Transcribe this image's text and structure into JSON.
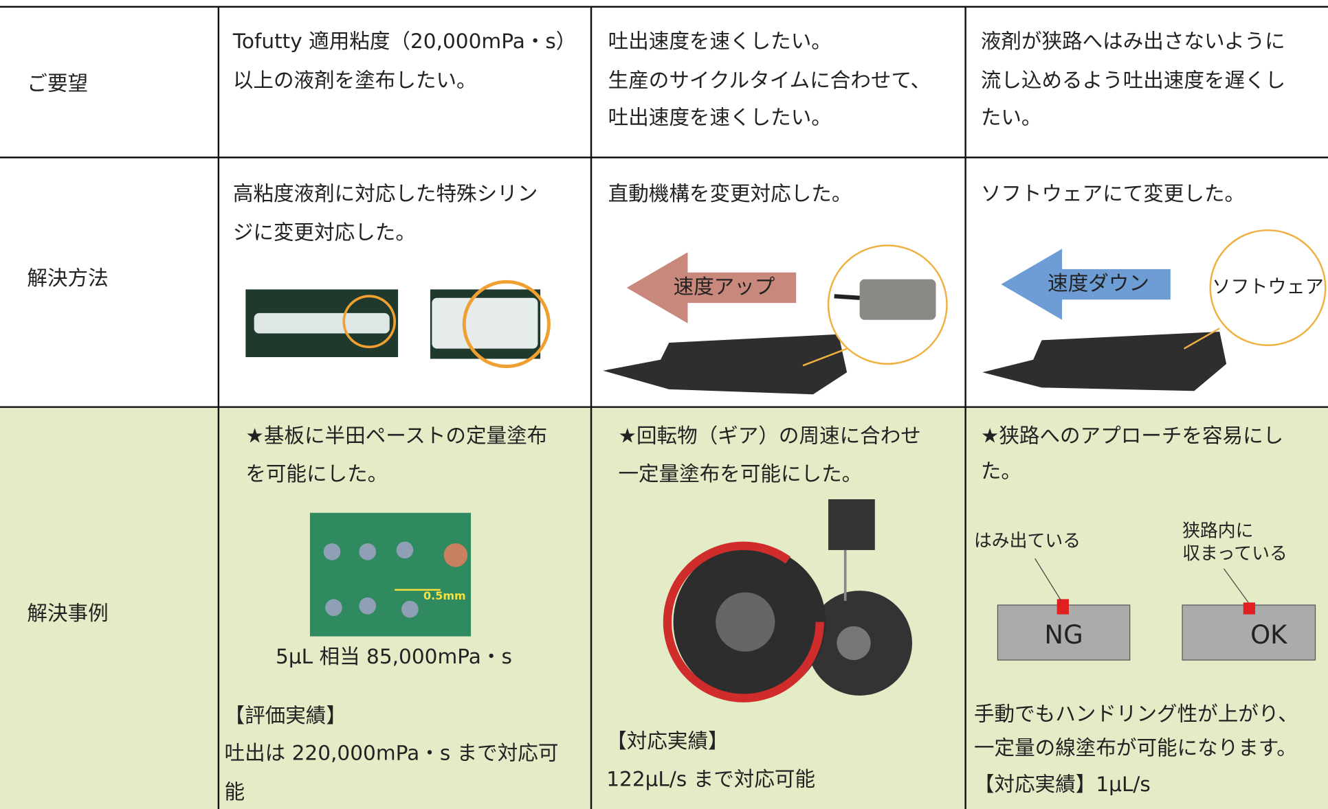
{
  "table": {
    "rows": [
      {
        "header": "ご要望",
        "cells": [
          {
            "lines": [
              "Tofutty 適用粘度（20,000mPa・s）",
              "以上の液剤を塗布したい。"
            ]
          },
          {
            "lines": [
              "吐出速度を速くしたい。",
              "生産のサイクルタイムに合わせて、",
              "吐出速度を速くしたい。"
            ]
          },
          {
            "lines": [
              "液剤が狭路へはみ出さないように",
              "流し込めるよう吐出速度を遅くし",
              "たい。"
            ]
          }
        ]
      },
      {
        "header": "解決方法",
        "cells": [
          {
            "lines": [
              "高粘度液剤に対応した特殊シリン",
              "ジに変更対応した。"
            ]
          },
          {
            "lines": [
              "直動機構を変更対応した。"
            ],
            "figure_labels": [
              "速度アップ"
            ]
          },
          {
            "lines": [
              "ソフトウェアにて変更した。"
            ],
            "figure_labels": [
              "速度ダウン",
              "ソフトウェア"
            ]
          }
        ]
      },
      {
        "header": "解決事例",
        "cells": [
          {
            "lines": [
              "★基板に半田ペーストの定量塗布",
              "を可能にした。"
            ],
            "figure_labels": [
              "0.5mm"
            ],
            "caption": "5μL 相当 85,000mPa・s",
            "notes": [
              "【評価実績】",
              "吐出は 220,000mPa・s まで対応可",
              "能"
            ]
          },
          {
            "lines": [
              "★回転物（ギア）の周速に合わせ",
              "一定量塗布を可能にした。"
            ],
            "notes": [
              "【対応実績】",
              "122μL/s まで対応可能"
            ]
          },
          {
            "lines": [
              "★狭路へのアプローチを容易にし",
              "た。"
            ],
            "figure_labels": [
              "はみ出ている",
              "狭路内に",
              "収まっている",
              "NG",
              "OK"
            ],
            "notes": [
              "手動でもハンドリング性が上がり、",
              "一定量の線塗布が可能になります。",
              "【対応実績】1μL/s"
            ]
          }
        ]
      }
    ]
  }
}
